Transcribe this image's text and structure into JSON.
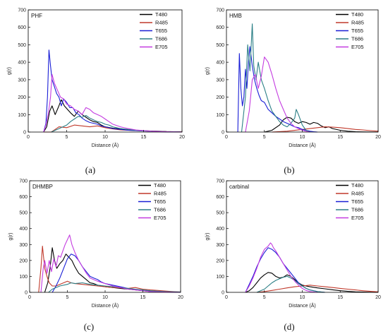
{
  "figure": {
    "captions": [
      "(a)",
      "(b)",
      "(c)",
      "(d)"
    ]
  },
  "series_colors": {
    "T480": "#000000",
    "R485": "#c0392b",
    "T655": "#1a1fd6",
    "T686": "#2b7f86",
    "E705": "#c43ce0"
  },
  "chart_data": [
    {
      "type": "line",
      "title": "PHF",
      "xlabel": "Distance (Å)",
      "ylabel": "g(r)",
      "xlim": [
        0,
        20
      ],
      "ylim": [
        0,
        700
      ],
      "xticks": [
        0,
        5,
        10,
        15,
        20
      ],
      "yticks": [
        0,
        100,
        200,
        300,
        400,
        500,
        600,
        700
      ],
      "legend": "top-right",
      "grid": false,
      "series": [
        {
          "name": "T480",
          "x": [
            2.0,
            2.4,
            2.8,
            3.1,
            3.5,
            3.9,
            4.3,
            4.7,
            5.1,
            5.5,
            6.0,
            6.5,
            7.0,
            7.5,
            8.0,
            8.5,
            9.0,
            9.5,
            10.0,
            11.0,
            12.0,
            13.0,
            14.0,
            15.0,
            16.0,
            17.0,
            18.0,
            19.0,
            20.0
          ],
          "y": [
            0,
            30,
            120,
            150,
            100,
            140,
            185,
            150,
            130,
            110,
            90,
            120,
            100,
            85,
            70,
            60,
            55,
            40,
            30,
            22,
            18,
            12,
            10,
            8,
            6,
            5,
            3,
            2,
            1
          ]
        },
        {
          "name": "R485",
          "x": [
            2.0,
            3.0,
            3.5,
            4.0,
            5.0,
            6.0,
            7.0,
            8.0,
            9.0,
            10.0,
            11.0,
            12.0,
            13.0,
            14.0,
            15.0,
            16.0,
            18.0,
            20.0
          ],
          "y": [
            0,
            0,
            15,
            30,
            25,
            40,
            35,
            30,
            35,
            25,
            18,
            12,
            10,
            8,
            6,
            4,
            2,
            1
          ]
        },
        {
          "name": "T655",
          "x": [
            2.0,
            2.3,
            2.5,
            2.7,
            2.9,
            3.1,
            3.4,
            3.7,
            4.0,
            4.3,
            4.6,
            5.0,
            5.4,
            5.8,
            6.2,
            6.6,
            7.0,
            7.5,
            8.0,
            8.5,
            9.0,
            9.5,
            10.0,
            10.5,
            11.0,
            12.0,
            13.0,
            14.0,
            15.0,
            16.0,
            17.0,
            18.0,
            19.0,
            20.0
          ],
          "y": [
            0,
            50,
            200,
            470,
            380,
            300,
            260,
            220,
            200,
            150,
            190,
            170,
            140,
            140,
            110,
            100,
            80,
            65,
            55,
            50,
            45,
            35,
            30,
            25,
            20,
            15,
            10,
            8,
            6,
            4,
            2,
            1,
            1,
            0
          ]
        },
        {
          "name": "T686",
          "x": [
            3.0,
            4.0,
            5.0,
            5.5,
            6.0,
            6.5,
            7.0,
            7.5,
            8.0,
            8.5,
            9.0,
            9.5,
            10.0,
            10.5,
            11.0,
            12.0,
            13.0,
            14.0,
            16.0,
            18.0,
            20.0
          ],
          "y": [
            0,
            20,
            40,
            60,
            75,
            90,
            85,
            95,
            80,
            70,
            60,
            55,
            45,
            40,
            30,
            20,
            15,
            10,
            5,
            2,
            0
          ]
        },
        {
          "name": "E705",
          "x": [
            2.0,
            2.3,
            2.6,
            2.9,
            3.1,
            3.4,
            3.8,
            4.2,
            4.6,
            5.0,
            5.5,
            6.0,
            6.5,
            7.0,
            7.5,
            8.0,
            8.5,
            9.0,
            9.5,
            10.0,
            10.5,
            11.0,
            12.0,
            13.0,
            14.0,
            16.0,
            18.0,
            20.0
          ],
          "y": [
            0,
            40,
            100,
            200,
            330,
            280,
            240,
            200,
            190,
            160,
            150,
            130,
            120,
            100,
            140,
            130,
            110,
            100,
            90,
            75,
            60,
            45,
            30,
            20,
            12,
            5,
            2,
            0
          ]
        }
      ]
    },
    {
      "type": "line",
      "title": "HMB",
      "xlabel": "Distance (Å)",
      "ylabel": "g(r)",
      "xlim": [
        0,
        20
      ],
      "ylim": [
        0,
        700
      ],
      "xticks": [
        0,
        5,
        10,
        15,
        20
      ],
      "yticks": [
        0,
        100,
        200,
        300,
        400,
        500,
        600,
        700
      ],
      "legend": "top-right",
      "grid": false,
      "series": [
        {
          "name": "T480",
          "x": [
            5.0,
            6.0,
            7.0,
            7.5,
            8.0,
            8.5,
            9.0,
            9.5,
            10.0,
            10.5,
            11.0,
            11.5,
            12.0,
            12.5,
            13.0,
            13.5,
            14.0,
            15.0,
            16.0,
            17.0,
            18.0,
            20.0
          ],
          "y": [
            0,
            10,
            40,
            70,
            85,
            80,
            60,
            50,
            60,
            55,
            45,
            55,
            50,
            35,
            25,
            30,
            20,
            10,
            5,
            2,
            1,
            0
          ]
        },
        {
          "name": "R485",
          "x": [
            6.0,
            8.0,
            10.0,
            12.0,
            13.0,
            14.0,
            15.0,
            16.0,
            17.0,
            18.0,
            19.0,
            20.0
          ],
          "y": [
            0,
            5,
            15,
            25,
            30,
            28,
            25,
            20,
            15,
            12,
            8,
            5
          ]
        },
        {
          "name": "T655",
          "x": [
            1.5,
            1.7,
            1.9,
            2.1,
            2.3,
            2.5,
            2.7,
            2.9,
            3.1,
            3.4,
            3.7,
            4.0,
            4.3,
            4.6,
            5.0,
            5.5,
            6.0,
            6.5,
            7.0,
            7.5,
            8.0,
            8.5,
            9.0,
            9.5,
            10.0,
            10.5,
            11.0,
            11.5,
            12.0
          ],
          "y": [
            0,
            450,
            250,
            150,
            200,
            360,
            250,
            400,
            490,
            380,
            300,
            250,
            210,
            180,
            170,
            130,
            110,
            90,
            75,
            60,
            50,
            40,
            30,
            25,
            15,
            10,
            5,
            2,
            0
          ]
        },
        {
          "name": "T686",
          "x": [
            2.0,
            2.5,
            2.8,
            3.1,
            3.4,
            3.6,
            3.9,
            4.2,
            4.6,
            5.0,
            5.5,
            6.0,
            6.5,
            7.0,
            7.5,
            8.0,
            8.5,
            9.0,
            9.2,
            9.5,
            10.0,
            10.5,
            11.0
          ],
          "y": [
            0,
            200,
            500,
            350,
            620,
            380,
            300,
            400,
            300,
            250,
            180,
            120,
            90,
            60,
            40,
            30,
            50,
            80,
            130,
            100,
            40,
            10,
            0
          ]
        },
        {
          "name": "E705",
          "x": [
            2.5,
            3.0,
            3.4,
            3.8,
            4.2,
            4.6,
            5.0,
            5.5,
            6.0,
            6.5,
            7.0,
            7.5,
            8.0,
            8.5,
            9.0,
            9.5,
            10.0,
            10.5,
            11.0
          ],
          "y": [
            0,
            120,
            300,
            330,
            250,
            320,
            430,
            400,
            330,
            250,
            180,
            130,
            80,
            50,
            30,
            20,
            10,
            5,
            0
          ]
        }
      ]
    },
    {
      "type": "line",
      "title": "DHMBP",
      "xlabel": "Distance (Å)",
      "ylabel": "g(r)",
      "xlim": [
        0,
        20
      ],
      "ylim": [
        0,
        700
      ],
      "xticks": [
        0,
        5,
        10,
        15,
        20
      ],
      "yticks": [
        0,
        100,
        200,
        300,
        400,
        500,
        600,
        700
      ],
      "legend": "top-right",
      "grid": false,
      "series": [
        {
          "name": "T480",
          "x": [
            2.0,
            2.4,
            2.7,
            3.0,
            3.3,
            3.6,
            4.0,
            4.4,
            4.8,
            5.2,
            5.6,
            6.0,
            6.5,
            7.0,
            7.5,
            8.0,
            8.5,
            9.0,
            9.5,
            10.0,
            11.0,
            12.0,
            13.0,
            14.0,
            15.0,
            16.0,
            18.0,
            20.0
          ],
          "y": [
            0,
            60,
            150,
            280,
            200,
            150,
            180,
            200,
            240,
            220,
            200,
            160,
            120,
            100,
            80,
            60,
            55,
            45,
            40,
            35,
            30,
            25,
            20,
            15,
            10,
            5,
            2,
            0
          ]
        },
        {
          "name": "R485",
          "x": [
            1.2,
            1.5,
            1.7,
            2.0,
            2.3,
            2.6,
            3.0,
            3.5,
            4.0,
            4.5,
            5.0,
            5.5,
            6.0,
            7.0,
            8.0,
            9.0,
            10.0,
            11.0,
            12.0,
            13.0,
            14.0,
            15.0,
            16.0,
            17.0,
            18.0,
            19.0,
            20.0
          ],
          "y": [
            0,
            150,
            290,
            150,
            100,
            60,
            40,
            40,
            50,
            60,
            70,
            60,
            55,
            50,
            45,
            40,
            35,
            30,
            28,
            25,
            30,
            20,
            15,
            12,
            8,
            5,
            2
          ]
        },
        {
          "name": "T655",
          "x": [
            3.0,
            3.5,
            4.0,
            4.5,
            5.0,
            5.5,
            6.0,
            6.5,
            7.0,
            7.5,
            8.0,
            8.5,
            9.0,
            9.5,
            10.0,
            11.0,
            12.0,
            13.0,
            14.0,
            15.0,
            16.0,
            18.0,
            20.0
          ],
          "y": [
            0,
            40,
            90,
            150,
            210,
            240,
            230,
            200,
            160,
            130,
            100,
            90,
            80,
            65,
            55,
            45,
            35,
            25,
            18,
            12,
            8,
            3,
            0
          ]
        },
        {
          "name": "T686",
          "x": [
            2.5,
            3.0,
            4.0,
            5.0,
            5.5,
            6.0,
            7.0,
            8.0,
            9.0,
            10.0,
            11.0,
            12.0,
            13.0,
            14.0,
            15.0,
            16.0,
            18.0,
            20.0
          ],
          "y": [
            0,
            20,
            40,
            50,
            60,
            55,
            60,
            50,
            45,
            40,
            35,
            30,
            25,
            20,
            15,
            10,
            5,
            2
          ]
        },
        {
          "name": "E705",
          "x": [
            1.5,
            1.8,
            2.0,
            2.3,
            2.6,
            2.9,
            3.2,
            3.5,
            3.8,
            4.1,
            4.4,
            4.7,
            5.0,
            5.3,
            5.6,
            6.0,
            6.5,
            7.0,
            7.5,
            8.0,
            9.0,
            10.0,
            11.0,
            12.0,
            13.0,
            14.0,
            15.0,
            16.0,
            18.0,
            20.0
          ],
          "y": [
            0,
            150,
            200,
            120,
            200,
            130,
            210,
            160,
            230,
            220,
            260,
            300,
            330,
            360,
            300,
            250,
            200,
            160,
            120,
            90,
            70,
            55,
            40,
            30,
            20,
            15,
            10,
            5,
            2,
            0
          ]
        }
      ]
    },
    {
      "type": "line",
      "title": "carbinal",
      "xlabel": "Distance (Å)",
      "ylabel": "g(r)",
      "xlim": [
        0,
        20
      ],
      "ylim": [
        0,
        700
      ],
      "xticks": [
        0,
        5,
        10,
        15,
        20
      ],
      "yticks": [
        0,
        100,
        200,
        300,
        400,
        500,
        600,
        700
      ],
      "legend": "top-right",
      "grid": false,
      "series": [
        {
          "name": "T480",
          "x": [
            2.5,
            3.0,
            3.5,
            4.0,
            4.5,
            5.0,
            5.5,
            6.0,
            6.5,
            7.0,
            7.5,
            8.0,
            8.5,
            9.0,
            9.5,
            10.0,
            11.0,
            12.0,
            13.0,
            14.0,
            15.0,
            16.0,
            17.0,
            18.0,
            20.0
          ],
          "y": [
            0,
            10,
            30,
            60,
            90,
            110,
            125,
            120,
            100,
            90,
            95,
            110,
            100,
            80,
            60,
            45,
            35,
            28,
            22,
            16,
            10,
            6,
            3,
            2,
            0
          ]
        },
        {
          "name": "R485",
          "x": [
            4.0,
            5.0,
            6.0,
            7.0,
            8.0,
            9.0,
            10.0,
            11.0,
            12.0,
            13.0,
            14.0,
            15.0,
            16.0,
            17.0,
            18.0,
            19.0,
            20.0
          ],
          "y": [
            0,
            5,
            12,
            20,
            28,
            35,
            40,
            45,
            40,
            35,
            30,
            25,
            20,
            15,
            10,
            6,
            3
          ]
        },
        {
          "name": "T655",
          "x": [
            2.5,
            3.0,
            3.5,
            4.0,
            4.5,
            5.0,
            5.5,
            6.0,
            6.5,
            7.0,
            7.5,
            8.0,
            8.5,
            9.0,
            9.5,
            10.0,
            10.5,
            11.0,
            12.0,
            13.0
          ],
          "y": [
            0,
            50,
            100,
            160,
            210,
            250,
            280,
            270,
            250,
            220,
            180,
            150,
            120,
            90,
            60,
            40,
            25,
            15,
            5,
            0
          ]
        },
        {
          "name": "T686",
          "x": [
            4.0,
            5.0,
            5.5,
            6.0,
            6.5,
            7.0,
            7.5,
            8.0,
            8.5,
            9.0,
            9.5,
            10.0,
            10.5,
            11.0,
            12.0,
            13.0
          ],
          "y": [
            0,
            20,
            40,
            60,
            75,
            85,
            95,
            100,
            90,
            75,
            55,
            40,
            25,
            15,
            5,
            0
          ]
        },
        {
          "name": "E705",
          "x": [
            2.5,
            3.0,
            3.5,
            4.0,
            4.5,
            5.0,
            5.5,
            5.8,
            6.0,
            6.2,
            6.5,
            7.0,
            7.5,
            8.0,
            8.5,
            9.0,
            9.5,
            10.0,
            10.5,
            11.0,
            12.0
          ],
          "y": [
            0,
            40,
            90,
            150,
            220,
            270,
            290,
            310,
            300,
            280,
            260,
            220,
            180,
            140,
            100,
            70,
            45,
            25,
            12,
            5,
            0
          ]
        }
      ]
    }
  ]
}
